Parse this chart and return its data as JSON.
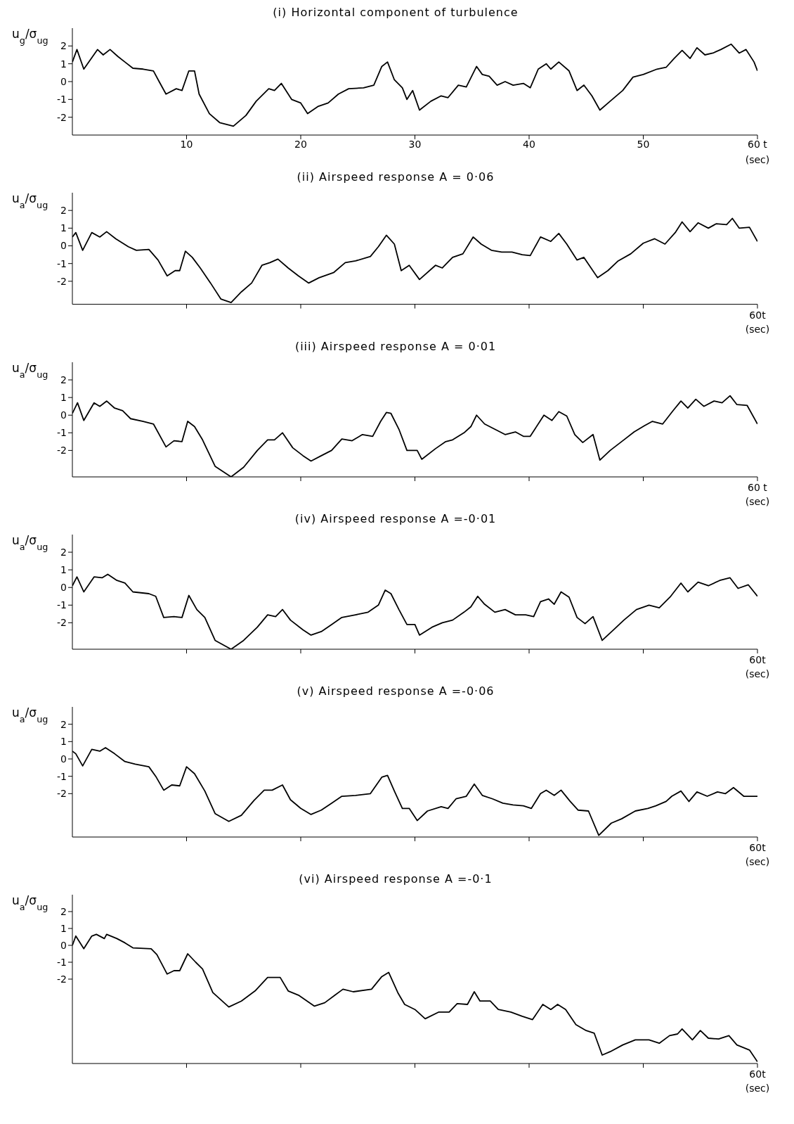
{
  "chart_data": [
    {
      "type": "line",
      "title": "(i) Horizontal component of turbulence",
      "ylabel": "u$_{g}$/σ$_{ug}$",
      "xlabel": "(sec)",
      "xlim": [
        0,
        60
      ],
      "xticks": [
        10,
        20,
        30,
        40,
        50,
        {
          "value": 60,
          "label": "60 t"
        }
      ],
      "ylim": [
        -3,
        3
      ],
      "yticks": [
        -2,
        -1,
        0,
        1,
        2
      ],
      "color": "#000000",
      "x": [
        0,
        0.4,
        1.0,
        2.2,
        2.7,
        3.3,
        4.0,
        4.6,
        5.3,
        6.2,
        7.1,
        7.6,
        8.2,
        9.1,
        9.6,
        10.2,
        10.7,
        11.1,
        12.0,
        12.9,
        14.1,
        15.2,
        16.1,
        17.2,
        17.7,
        18.3,
        19.2,
        20.0,
        20.6,
        21.5,
        22.4,
        23.3,
        24.2,
        25.5,
        26.4,
        27.1,
        27.6,
        28.2,
        28.9,
        29.3,
        29.8,
        30.4,
        31.4,
        32.3,
        32.9,
        33.8,
        34.5,
        35.4,
        35.9,
        36.5,
        37.2,
        37.9,
        38.6,
        39.5,
        40.1,
        40.8,
        41.5,
        41.9,
        42.6,
        43.5,
        44.2,
        44.8,
        45.5,
        46.2,
        47.1,
        48.2,
        49.1,
        50.0,
        51.2,
        52.0,
        52.7,
        53.4,
        54.1,
        54.7,
        55.4,
        56.1,
        56.8,
        57.7,
        58.4,
        59.0,
        59.7,
        60
      ],
      "values": [
        1.1,
        1.8,
        0.7,
        1.8,
        1.5,
        1.8,
        1.4,
        1.1,
        0.75,
        0.7,
        0.6,
        0,
        -0.7,
        -0.4,
        -0.5,
        0.6,
        0.6,
        -0.7,
        -1.8,
        -2.3,
        -2.5,
        -1.9,
        -1.1,
        -0.4,
        -0.5,
        -0.1,
        -1.0,
        -1.2,
        -1.8,
        -1.4,
        -1.2,
        -0.7,
        -0.4,
        -0.35,
        -0.2,
        0.85,
        1.1,
        0.1,
        -0.35,
        -1.0,
        -0.5,
        -1.6,
        -1.1,
        -0.8,
        -0.9,
        -0.2,
        -0.3,
        0.85,
        0.4,
        0.3,
        -0.2,
        0,
        -0.2,
        -0.1,
        -0.35,
        0.7,
        1.0,
        0.7,
        1.1,
        0.6,
        -0.5,
        -0.2,
        -0.8,
        -1.6,
        -1.1,
        -0.5,
        0.25,
        0.4,
        0.7,
        0.8,
        1.3,
        1.75,
        1.3,
        1.9,
        1.5,
        1.6,
        1.8,
        2.1,
        1.6,
        1.8,
        1.1,
        0.6
      ]
    },
    {
      "type": "line",
      "title": "(ii) Airspeed response A = 0·06",
      "ylabel": "u$_{a}$/σ$_{ug}$",
      "xlabel": "(sec)",
      "annotations": [
        "60t"
      ],
      "tick_labels": "y",
      "xlim": [
        0,
        60
      ],
      "xticks": [
        10,
        20,
        30,
        40,
        50,
        60
      ],
      "ylim": [
        -3.3,
        3
      ],
      "yticks": [
        -2,
        -1,
        0,
        1,
        2
      ],
      "color": "#000000",
      "x": [
        0,
        0.3,
        0.9,
        1.7,
        2.4,
        3.0,
        3.8,
        4.9,
        5.6,
        6.7,
        7.5,
        8.3,
        9.0,
        9.4,
        9.9,
        10.5,
        11.2,
        12.1,
        13.0,
        13.9,
        14.8,
        15.7,
        16.6,
        17.3,
        18.0,
        18.9,
        19.8,
        20.7,
        21.6,
        22.9,
        23.9,
        24.8,
        26.1,
        26.8,
        27.5,
        28.2,
        28.8,
        29.5,
        30.4,
        31.8,
        32.4,
        33.3,
        34.2,
        35.1,
        35.8,
        36.7,
        37.6,
        38.5,
        39.4,
        40.1,
        41.0,
        41.9,
        42.6,
        43.3,
        44.2,
        44.8,
        46.0,
        46.9,
        47.8,
        48.9,
        50.0,
        51.0,
        51.9,
        52.8,
        53.4,
        54.1,
        54.8,
        55.7,
        56.4,
        57.3,
        57.8,
        58.4,
        59.3,
        60
      ],
      "values": [
        0.5,
        0.75,
        -0.25,
        0.75,
        0.5,
        0.8,
        0.4,
        -0.05,
        -0.25,
        -0.2,
        -0.8,
        -1.7,
        -1.4,
        -1.4,
        -0.3,
        -0.65,
        -1.25,
        -2.1,
        -3.0,
        -3.2,
        -2.6,
        -2.1,
        -1.1,
        -0.95,
        -0.75,
        -1.25,
        -1.7,
        -2.1,
        -1.8,
        -1.5,
        -0.95,
        -0.85,
        -0.6,
        -0.05,
        0.6,
        0.1,
        -1.4,
        -1.1,
        -1.9,
        -1.1,
        -1.25,
        -0.65,
        -0.45,
        0.5,
        0.1,
        -0.25,
        -0.35,
        -0.35,
        -0.5,
        -0.55,
        0.5,
        0.25,
        0.7,
        0.1,
        -0.8,
        -0.65,
        -1.8,
        -1.4,
        -0.85,
        -0.45,
        0.15,
        0.4,
        0.1,
        0.75,
        1.35,
        0.8,
        1.3,
        1.0,
        1.25,
        1.2,
        1.55,
        1.0,
        1.05,
        0.25
      ]
    },
    {
      "type": "line",
      "title": "(iii) Airspeed response A = 0·01",
      "ylabel": "u$_{a}$/σ$_{ug}$",
      "xlabel": "(sec)",
      "annotations": [
        "60 t"
      ],
      "tick_labels": "y",
      "xlim": [
        0,
        60
      ],
      "xticks": [
        10,
        20,
        30,
        40,
        50,
        60
      ],
      "ylim": [
        -3.5,
        3
      ],
      "yticks": [
        -2,
        -1,
        0,
        1,
        2
      ],
      "color": "#000000",
      "x": [
        0,
        0.45,
        1.0,
        1.9,
        2.4,
        3.0,
        3.7,
        4.4,
        5.1,
        6.2,
        7.1,
        8.2,
        8.9,
        9.6,
        10.1,
        10.7,
        11.4,
        12.5,
        13.9,
        15.0,
        16.2,
        17.1,
        17.7,
        18.4,
        19.3,
        20.2,
        20.9,
        21.8,
        22.7,
        23.6,
        24.5,
        25.4,
        26.3,
        27.0,
        27.5,
        27.9,
        28.6,
        29.3,
        30.2,
        30.6,
        31.8,
        32.7,
        33.3,
        34.3,
        34.9,
        35.4,
        36.1,
        37.0,
        37.9,
        38.8,
        39.5,
        40.1,
        41.3,
        42.0,
        42.6,
        43.3,
        44.0,
        44.7,
        45.6,
        46.2,
        47.1,
        48.3,
        49.2,
        50.1,
        50.8,
        51.7,
        52.6,
        53.3,
        53.9,
        54.6,
        55.3,
        56.2,
        56.9,
        57.6,
        58.2,
        59.1,
        60
      ],
      "values": [
        0.1,
        0.7,
        -0.3,
        0.7,
        0.5,
        0.8,
        0.4,
        0.25,
        -0.2,
        -0.35,
        -0.5,
        -1.8,
        -1.45,
        -1.5,
        -0.35,
        -0.65,
        -1.4,
        -2.9,
        -3.5,
        -2.95,
        -2.0,
        -1.4,
        -1.4,
        -1.0,
        -1.85,
        -2.3,
        -2.6,
        -2.3,
        -2.0,
        -1.35,
        -1.45,
        -1.1,
        -1.2,
        -0.35,
        0.15,
        0.1,
        -0.8,
        -2.0,
        -2.0,
        -2.5,
        -1.9,
        -1.5,
        -1.4,
        -1.0,
        -0.65,
        0,
        -0.5,
        -0.8,
        -1.1,
        -0.95,
        -1.2,
        -1.2,
        0,
        -0.3,
        0.2,
        -0.05,
        -1.1,
        -1.55,
        -1.1,
        -2.55,
        -2.0,
        -1.4,
        -0.95,
        -0.6,
        -0.35,
        -0.5,
        0.25,
        0.8,
        0.4,
        0.9,
        0.5,
        0.8,
        0.7,
        1.1,
        0.6,
        0.55,
        -0.5
      ]
    },
    {
      "type": "line",
      "title": "(iv) Airspeed response A =-0·01",
      "ylabel": "u$_{a}$/σ$_{ug}$",
      "xlabel": "(sec)",
      "annotations": [
        "60t"
      ],
      "tick_labels": "y",
      "xlim": [
        0,
        60
      ],
      "xticks": [
        10,
        20,
        30,
        40,
        50,
        60
      ],
      "ylim": [
        -3.5,
        3
      ],
      "yticks": [
        -2,
        -1,
        0,
        1,
        2
      ],
      "color": "#000000",
      "x": [
        0,
        0.4,
        1.0,
        1.9,
        2.6,
        3.1,
        3.9,
        4.6,
        5.3,
        6.7,
        7.3,
        8.0,
        8.9,
        9.6,
        10.2,
        10.9,
        11.6,
        12.5,
        13.9,
        15.0,
        16.2,
        17.1,
        17.8,
        18.4,
        19.1,
        20.2,
        20.9,
        21.8,
        22.7,
        23.6,
        24.8,
        25.9,
        26.8,
        27.4,
        27.9,
        28.6,
        29.3,
        30.0,
        30.4,
        31.5,
        32.4,
        33.3,
        34.3,
        34.9,
        35.5,
        36.1,
        37.0,
        37.9,
        38.8,
        39.7,
        40.4,
        41.0,
        41.7,
        42.2,
        42.8,
        43.5,
        44.2,
        44.9,
        45.6,
        46.4,
        47.4,
        48.3,
        49.4,
        50.5,
        51.4,
        52.4,
        53.3,
        53.9,
        54.8,
        55.7,
        56.7,
        57.6,
        58.3,
        59.2,
        60
      ],
      "values": [
        0.1,
        0.6,
        -0.25,
        0.6,
        0.55,
        0.75,
        0.4,
        0.25,
        -0.25,
        -0.35,
        -0.5,
        -1.7,
        -1.65,
        -1.7,
        -0.45,
        -1.25,
        -1.7,
        -3.0,
        -3.5,
        -3.0,
        -2.25,
        -1.55,
        -1.65,
        -1.25,
        -1.85,
        -2.4,
        -2.7,
        -2.5,
        -2.1,
        -1.7,
        -1.55,
        -1.4,
        -1.0,
        -0.15,
        -0.35,
        -1.25,
        -2.1,
        -2.1,
        -2.7,
        -2.25,
        -2.0,
        -1.85,
        -1.4,
        -1.1,
        -0.5,
        -0.95,
        -1.4,
        -1.25,
        -1.55,
        -1.55,
        -1.65,
        -0.8,
        -0.65,
        -0.95,
        -0.25,
        -0.55,
        -1.7,
        -2.05,
        -1.65,
        -3.0,
        -2.4,
        -1.85,
        -1.25,
        -1.0,
        -1.15,
        -0.5,
        0.25,
        -0.25,
        0.3,
        0.1,
        0.4,
        0.55,
        -0.05,
        0.15,
        -0.5
      ]
    },
    {
      "type": "line",
      "title": "(v) Airspeed response A =-0·06",
      "ylabel": "u$_{a}$/σ$_{ug}$",
      "xlabel": "(sec)",
      "annotations": [
        "60t"
      ],
      "tick_labels": "y",
      "xlim": [
        0,
        60
      ],
      "xticks": [
        10,
        20,
        30,
        40,
        50,
        60
      ],
      "ylim": [
        -4.5,
        3
      ],
      "yticks": [
        -2,
        -1,
        0,
        1,
        2
      ],
      "color": "#000000",
      "x": [
        0,
        0.3,
        0.9,
        1.7,
        2.4,
        2.9,
        3.7,
        4.6,
        5.5,
        6.7,
        7.3,
        8.0,
        8.7,
        9.4,
        10.0,
        10.7,
        11.6,
        12.5,
        13.7,
        14.8,
        15.9,
        16.8,
        17.5,
        18.4,
        19.1,
        20.0,
        20.9,
        21.8,
        22.7,
        23.6,
        24.8,
        26.1,
        27.1,
        27.6,
        28.2,
        28.9,
        29.5,
        30.2,
        31.1,
        32.3,
        32.9,
        33.6,
        34.5,
        35.2,
        35.9,
        36.8,
        37.7,
        38.6,
        39.5,
        40.2,
        41.0,
        41.5,
        42.2,
        42.8,
        43.6,
        44.3,
        45.2,
        46.1,
        47.2,
        48.1,
        49.3,
        50.4,
        51.1,
        52.0,
        52.5,
        53.3,
        54.0,
        54.7,
        55.6,
        56.5,
        57.2,
        57.9,
        58.8,
        60
      ],
      "values": [
        0.45,
        0.3,
        -0.4,
        0.55,
        0.45,
        0.65,
        0.3,
        -0.15,
        -0.3,
        -0.45,
        -1.0,
        -1.8,
        -1.5,
        -1.55,
        -0.45,
        -0.85,
        -1.85,
        -3.15,
        -3.6,
        -3.25,
        -2.4,
        -1.8,
        -1.8,
        -1.5,
        -2.35,
        -2.85,
        -3.2,
        -2.95,
        -2.55,
        -2.15,
        -2.1,
        -2.0,
        -1.05,
        -0.95,
        -1.85,
        -2.85,
        -2.85,
        -3.55,
        -3.0,
        -2.75,
        -2.85,
        -2.3,
        -2.15,
        -1.45,
        -2.1,
        -2.3,
        -2.55,
        -2.65,
        -2.7,
        -2.85,
        -2.0,
        -1.8,
        -2.1,
        -1.8,
        -2.45,
        -2.95,
        -3.0,
        -4.4,
        -3.7,
        -3.45,
        -3.0,
        -2.85,
        -2.7,
        -2.45,
        -2.15,
        -1.85,
        -2.45,
        -1.9,
        -2.15,
        -1.9,
        -2.0,
        -1.65,
        -2.15,
        -2.15
      ]
    },
    {
      "type": "line",
      "title": "(vi) Airspeed response A =-0·1",
      "ylabel": "u$_{a}$/σ$_{ug}$",
      "xlabel": "(sec)",
      "annotations": [
        "60t"
      ],
      "tick_labels": "y",
      "xlim": [
        0,
        60
      ],
      "xticks": [
        10,
        20,
        30,
        40,
        50,
        60
      ],
      "ylim": [
        -7,
        3
      ],
      "yticks": [
        -2,
        -1,
        0,
        1,
        2
      ],
      "color": "#000000",
      "x": [
        0,
        0.3,
        1.0,
        1.7,
        2.1,
        2.8,
        3.0,
        3.9,
        4.6,
        5.3,
        6.9,
        7.4,
        8.3,
        8.9,
        9.4,
        10.1,
        10.8,
        11.4,
        12.3,
        13.7,
        14.8,
        16.0,
        17.1,
        18.2,
        18.9,
        19.8,
        21.2,
        22.1,
        23.0,
        23.7,
        24.6,
        26.2,
        27.1,
        27.7,
        28.5,
        29.1,
        30.0,
        30.9,
        32.1,
        33.0,
        33.7,
        34.6,
        35.2,
        35.7,
        36.6,
        37.3,
        38.4,
        39.4,
        40.3,
        41.2,
        41.9,
        42.5,
        43.2,
        44.1,
        45.0,
        45.7,
        46.4,
        47.1,
        48.2,
        49.3,
        50.5,
        51.4,
        52.3,
        53.0,
        53.4,
        54.3,
        55.0,
        55.7,
        56.6,
        57.5,
        58.2,
        59.3,
        60
      ],
      "values": [
        0,
        0.55,
        -0.2,
        0.55,
        0.65,
        0.4,
        0.65,
        0.4,
        0.15,
        -0.15,
        -0.2,
        -0.55,
        -1.7,
        -1.5,
        -1.5,
        -0.5,
        -1.0,
        -1.4,
        -2.8,
        -3.65,
        -3.3,
        -2.7,
        -1.9,
        -1.9,
        -2.7,
        -2.95,
        -3.6,
        -3.4,
        -2.95,
        -2.6,
        -2.75,
        -2.6,
        -1.85,
        -1.6,
        -2.8,
        -3.5,
        -3.8,
        -4.35,
        -3.95,
        -3.95,
        -3.45,
        -3.5,
        -2.75,
        -3.3,
        -3.3,
        -3.8,
        -3.95,
        -4.2,
        -4.4,
        -3.5,
        -3.8,
        -3.5,
        -3.8,
        -4.7,
        -5.05,
        -5.2,
        -6.5,
        -6.3,
        -5.9,
        -5.6,
        -5.6,
        -5.8,
        -5.35,
        -5.25,
        -4.95,
        -5.6,
        -5.05,
        -5.5,
        -5.55,
        -5.35,
        -5.9,
        -6.2,
        -6.9
      ]
    }
  ]
}
